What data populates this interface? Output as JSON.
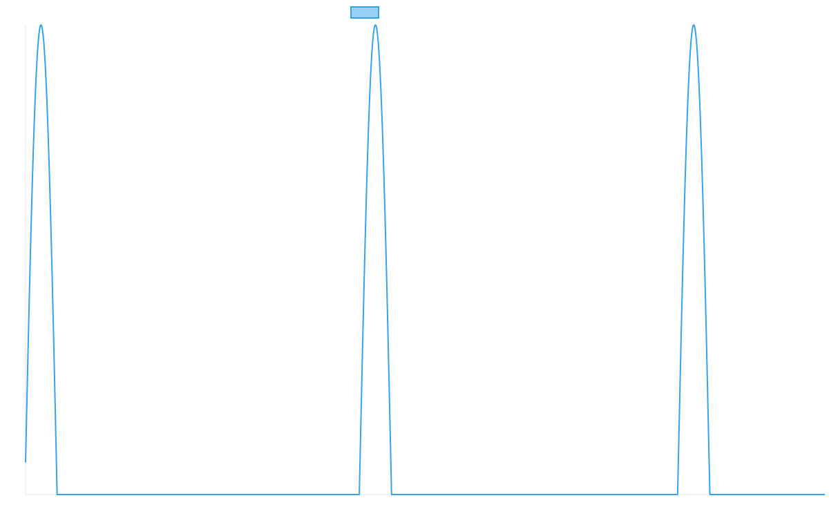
{
  "colors": {
    "line": "#36a2eb",
    "legend_fill": "#9ad0f5",
    "axis": "#e5e5e5",
    "background": "#ffffff"
  },
  "chart_data": {
    "type": "line",
    "title": "",
    "xlabel": "",
    "ylabel": "",
    "grid": false,
    "legend": {
      "placement": "top-center",
      "entries": [
        {
          "name": "",
          "swatch": "box"
        }
      ]
    },
    "xlim": [
      0,
      1140
    ],
    "ylim": [
      0,
      1
    ],
    "series": [
      {
        "name": "",
        "peaks": [
          {
            "center": 22,
            "half_width": 23,
            "height": 1
          },
          {
            "center": 499,
            "half_width": 23,
            "height": 1
          },
          {
            "center": 953,
            "half_width": 23,
            "height": 1
          }
        ],
        "baseline": 0
      }
    ]
  }
}
